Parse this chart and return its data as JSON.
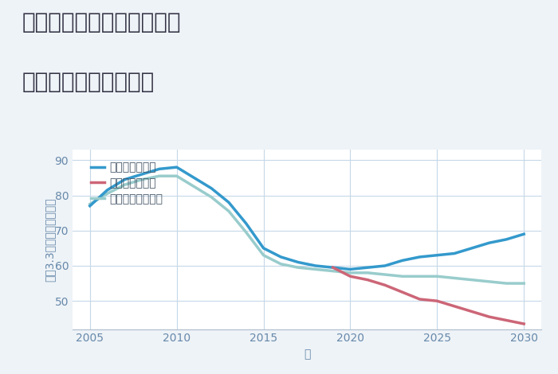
{
  "title_line1": "三重県桑名市多度町多度の",
  "title_line2": "中古戸建ての価格推移",
  "xlabel": "年",
  "ylabel": "坪（3.3㎡）単価（万円）",
  "background_color": "#eef3f7",
  "plot_bg_color": "#ffffff",
  "grid_color": "#c5d8e8",
  "legend_labels": [
    "グッドシナリオ",
    "バッドシナリオ",
    "ノーマルシナリオ"
  ],
  "good_color": "#3399cc",
  "bad_color": "#cc6677",
  "normal_color": "#99cccc",
  "good_x": [
    2005,
    2006,
    2007,
    2008,
    2009,
    2010,
    2011,
    2012,
    2013,
    2014,
    2015,
    2016,
    2017,
    2018,
    2019,
    2020,
    2021,
    2022,
    2023,
    2024,
    2025,
    2026,
    2027,
    2028,
    2029,
    2030
  ],
  "good_y": [
    77.0,
    81.5,
    84.5,
    86.0,
    87.5,
    88.0,
    85.0,
    82.0,
    78.0,
    72.0,
    65.0,
    62.5,
    61.0,
    60.0,
    59.5,
    59.0,
    59.5,
    60.0,
    61.5,
    62.5,
    63.0,
    63.5,
    65.0,
    66.5,
    67.5,
    69.0
  ],
  "bad_x": [
    2019,
    2020,
    2021,
    2022,
    2023,
    2024,
    2025,
    2026,
    2027,
    2028,
    2029,
    2030
  ],
  "bad_y": [
    59.5,
    57.0,
    56.0,
    54.5,
    52.5,
    50.5,
    50.0,
    48.5,
    47.0,
    45.5,
    44.5,
    43.5
  ],
  "normal_x": [
    2005,
    2006,
    2007,
    2008,
    2009,
    2010,
    2011,
    2012,
    2013,
    2014,
    2015,
    2016,
    2017,
    2018,
    2019,
    2020,
    2021,
    2022,
    2023,
    2024,
    2025,
    2026,
    2027,
    2028,
    2029,
    2030
  ],
  "normal_y": [
    77.5,
    80.5,
    83.0,
    84.5,
    85.5,
    85.5,
    82.5,
    79.5,
    75.5,
    69.5,
    63.0,
    60.5,
    59.5,
    59.0,
    58.5,
    58.0,
    58.0,
    57.5,
    57.0,
    57.0,
    57.0,
    56.5,
    56.0,
    55.5,
    55.0,
    55.0
  ],
  "xlim": [
    2004.0,
    2031.0
  ],
  "ylim": [
    42,
    93
  ],
  "yticks": [
    50,
    60,
    70,
    80,
    90
  ],
  "xticks": [
    2005,
    2010,
    2015,
    2020,
    2025,
    2030
  ],
  "line_width": 2.5,
  "title_fontsize": 20,
  "axis_label_fontsize": 10,
  "tick_fontsize": 10,
  "legend_fontsize": 10
}
